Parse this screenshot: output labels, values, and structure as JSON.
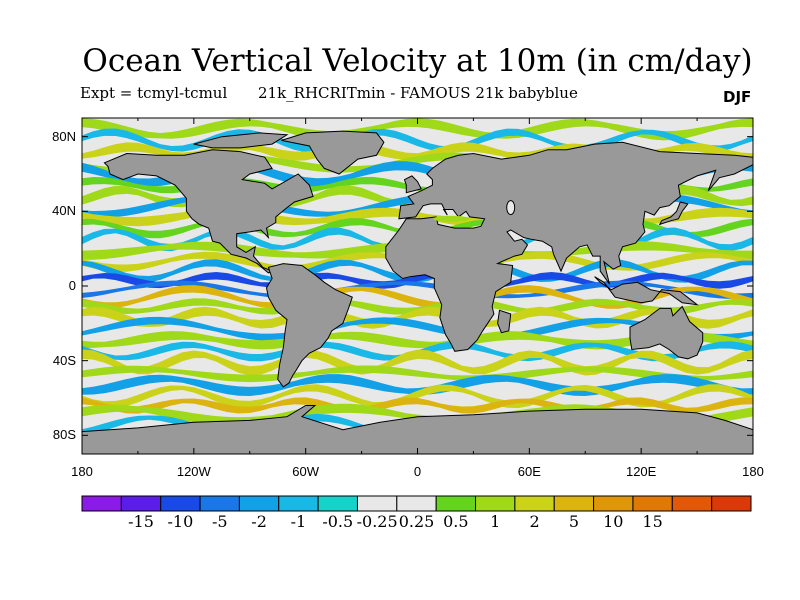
{
  "title": "Ocean Vertical Velocity at 10m (in cm/day)",
  "subtitle_left": "Expt = tcmyl-tcmul",
  "subtitle_right": "21k_RHCRITmin - FAMOUS 21k babyblue",
  "season": "DJF",
  "lat_labels": [
    "80N",
    "40N",
    "0",
    "40S",
    "80S"
  ],
  "lat_values": [
    80,
    40,
    0,
    -40,
    -80
  ],
  "lon_labels": [
    "180",
    "120W",
    "60W",
    "0",
    "60E",
    "120E",
    "180"
  ],
  "lon_values": [
    -180,
    -120,
    -60,
    0,
    60,
    120,
    180
  ],
  "colorbar": {
    "colors": [
      "#8a1ae6",
      "#5a1ee6",
      "#1a4ae6",
      "#1a78e6",
      "#12a0e6",
      "#19b8e6",
      "#16d2c8",
      "#e8e8e8",
      "#e8e8e8",
      "#64d41e",
      "#a0d81a",
      "#cad21a",
      "#dcb410",
      "#e0960a",
      "#e07808",
      "#e05808",
      "#d93a08"
    ],
    "labels": [
      "-15",
      "-10",
      "-5",
      "-2",
      "-1",
      "-0.5",
      "-0.25",
      "0.25",
      "0.5",
      "1",
      "2",
      "5",
      "10",
      "15"
    ]
  },
  "land_color": "#999999",
  "neutral_color": "#e8e8e8"
}
